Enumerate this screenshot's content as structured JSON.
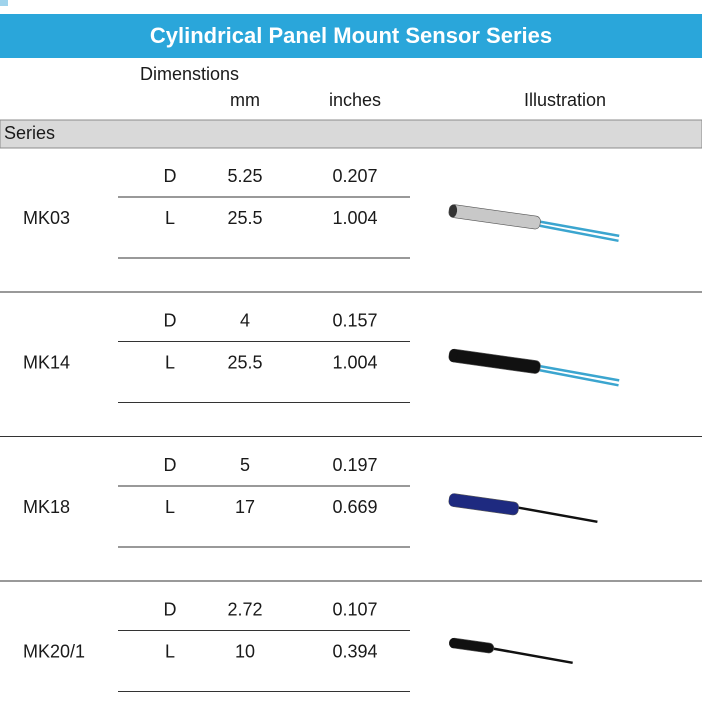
{
  "header": {
    "title": "Cylindrical Panel Mount Sensor Series"
  },
  "columns": {
    "group": "Dimenstions",
    "mm": "mm",
    "inches": "inches",
    "illustration": "Illustration",
    "series": "Series"
  },
  "rows": [
    {
      "series": "MK03",
      "dims": [
        {
          "label": "D",
          "mm": "5.25",
          "inches": "0.207"
        },
        {
          "label": "L",
          "mm": "25.5",
          "inches": "1.004"
        }
      ]
    },
    {
      "series": "MK14",
      "dims": [
        {
          "label": "D",
          "mm": "4",
          "inches": "0.157"
        },
        {
          "label": "L",
          "mm": "25.5",
          "inches": "1.004"
        }
      ]
    },
    {
      "series": "MK18",
      "dims": [
        {
          "label": "D",
          "mm": "5",
          "inches": "0.197"
        },
        {
          "label": "L",
          "mm": "17",
          "inches": "0.669"
        }
      ]
    },
    {
      "series": "MK20/1",
      "dims": [
        {
          "label": "D",
          "mm": "2.72",
          "inches": "0.107"
        },
        {
          "label": "L",
          "mm": "10",
          "inches": "0.394"
        }
      ]
    }
  ]
}
